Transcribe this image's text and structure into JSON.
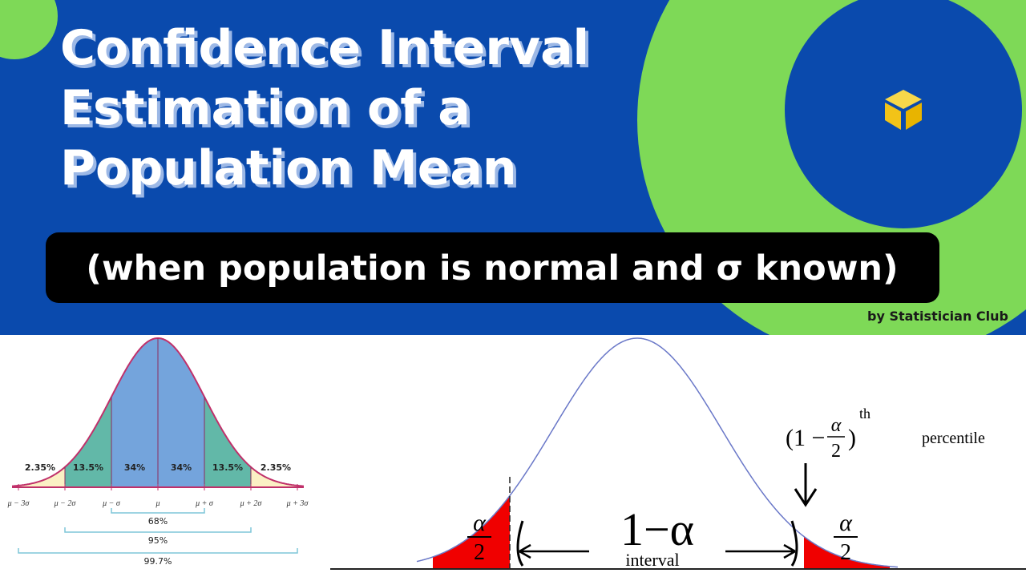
{
  "header": {
    "title_lines": [
      "Confidence Interval",
      "Estimation of a",
      "Population Mean"
    ],
    "subtitle": "(when population is normal and σ known)",
    "byline": "by Statistician Club"
  },
  "left_figure": {
    "region_labels": [
      "2.35%",
      "13.5%",
      "34%",
      "34%",
      "13.5%",
      "2.35%"
    ],
    "axis_labels": [
      "μ − 3σ",
      "μ − 2σ",
      "μ − σ",
      "μ",
      "μ + σ",
      "μ + 2σ",
      "μ + 3σ"
    ],
    "ranges": [
      "68%",
      "95%",
      "99.7%"
    ]
  },
  "right_figure": {
    "tail_numerator": "α",
    "tail_denominator": "2",
    "center_label": "1−α",
    "interval_label": "interval",
    "percentile_open": "(1 −",
    "percentile_close": ")",
    "percentile_sup": "th",
    "percentile_word": "percentile"
  }
}
